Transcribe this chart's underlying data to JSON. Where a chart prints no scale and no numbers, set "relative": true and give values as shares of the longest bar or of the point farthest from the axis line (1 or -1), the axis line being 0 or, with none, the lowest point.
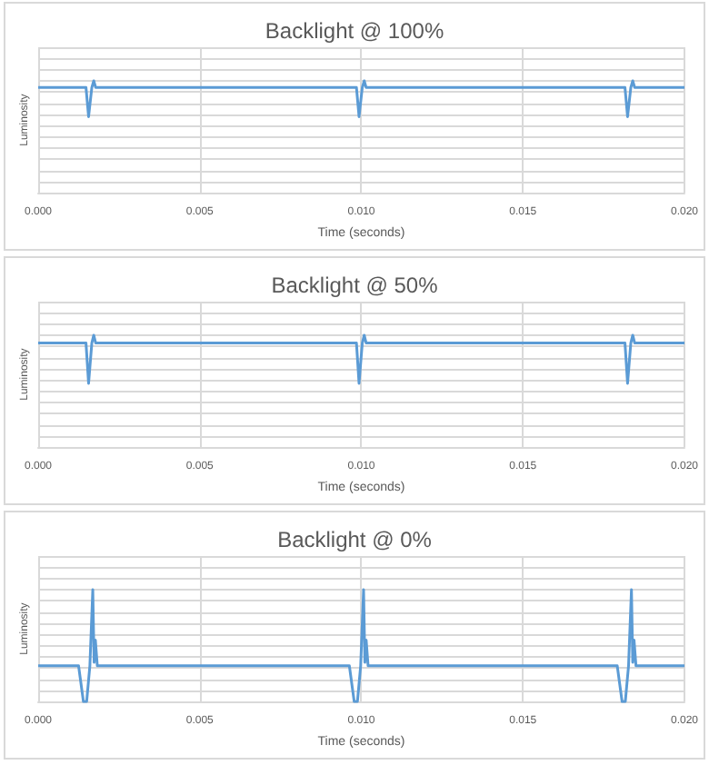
{
  "chart_data": [
    {
      "type": "line",
      "title": "Backlight @ 100%",
      "xlabel": "Time (seconds)",
      "ylabel": "Luminosity",
      "relative": true,
      "grid": true,
      "marker": "none",
      "tick_labels": "x",
      "xlim": [
        0,
        0.02
      ],
      "xticks": [
        {
          "value": 0,
          "label": "0.000"
        },
        {
          "value": 0.005,
          "label": "0.005"
        },
        {
          "value": 0.01,
          "label": "0.010"
        },
        {
          "value": 0.015,
          "label": "0.015"
        },
        {
          "value": 0.02,
          "label": "0.020"
        }
      ],
      "x": [
        0,
        0.00148,
        0.00156,
        0.00166,
        0.00172,
        0.00178,
        0.00985,
        0.00993,
        0.01003,
        0.01009,
        0.01015,
        0.01816,
        0.01824,
        0.01834,
        0.0184,
        0.01846,
        0.02
      ],
      "series": [
        {
          "color": "#5b9bd5",
          "values": [
            0.94,
            0.94,
            0.68,
            0.94,
            1,
            0.94,
            0.94,
            0.68,
            0.94,
            1,
            0.94,
            0.94,
            0.68,
            0.94,
            1,
            0.94,
            0.94
          ]
        }
      ]
    },
    {
      "type": "line",
      "title": "Backlight @ 50%",
      "xlabel": "Time (seconds)",
      "ylabel": "Luminosity",
      "relative": true,
      "grid": true,
      "marker": "none",
      "tick_labels": "x",
      "xlim": [
        0,
        0.02
      ],
      "xticks": [
        {
          "value": 0,
          "label": "0.000"
        },
        {
          "value": 0.005,
          "label": "0.005"
        },
        {
          "value": 0.01,
          "label": "0.010"
        },
        {
          "value": 0.015,
          "label": "0.015"
        },
        {
          "value": 0.02,
          "label": "0.020"
        }
      ],
      "x": [
        0,
        0.00148,
        0.00156,
        0.00166,
        0.00172,
        0.00178,
        0.00985,
        0.00993,
        0.01003,
        0.01009,
        0.01015,
        0.01816,
        0.01824,
        0.01834,
        0.0184,
        0.01846,
        0.02
      ],
      "series": [
        {
          "color": "#5b9bd5",
          "values": [
            0.93,
            0.93,
            0.57,
            0.93,
            1,
            0.93,
            0.93,
            0.57,
            0.93,
            1,
            0.93,
            0.93,
            0.57,
            0.93,
            1,
            0.93,
            0.93
          ]
        }
      ]
    },
    {
      "type": "line",
      "title": "Backlight @ 0%",
      "xlabel": "Time (seconds)",
      "ylabel": "Luminosity",
      "relative": true,
      "grid": true,
      "marker": "none",
      "tick_labels": "x",
      "xlim": [
        0,
        0.02
      ],
      "xticks": [
        {
          "value": 0,
          "label": "0.000"
        },
        {
          "value": 0.005,
          "label": "0.005"
        },
        {
          "value": 0.01,
          "label": "0.010"
        },
        {
          "value": 0.015,
          "label": "0.015"
        },
        {
          "value": 0.02,
          "label": "0.020"
        }
      ],
      "x": [
        0,
        0.00125,
        0.0014,
        0.0015,
        0.0016,
        0.00169,
        0.00173,
        0.00177,
        0.00183,
        0.00963,
        0.00978,
        0.00988,
        0.00998,
        0.01007,
        0.01011,
        0.01015,
        0.01021,
        0.01792,
        0.01807,
        0.01817,
        0.01827,
        0.01836,
        0.0184,
        0.01844,
        0.0185,
        0.02
      ],
      "series": [
        {
          "color": "#5b9bd5",
          "values": [
            0.32,
            0.32,
            0,
            0,
            0.32,
            1,
            0.35,
            0.55,
            0.32,
            0.32,
            0,
            0,
            0.32,
            1,
            0.35,
            0.55,
            0.32,
            0.32,
            0,
            0,
            0.32,
            1,
            0.35,
            0.55,
            0.32,
            0.32
          ]
        }
      ]
    }
  ]
}
